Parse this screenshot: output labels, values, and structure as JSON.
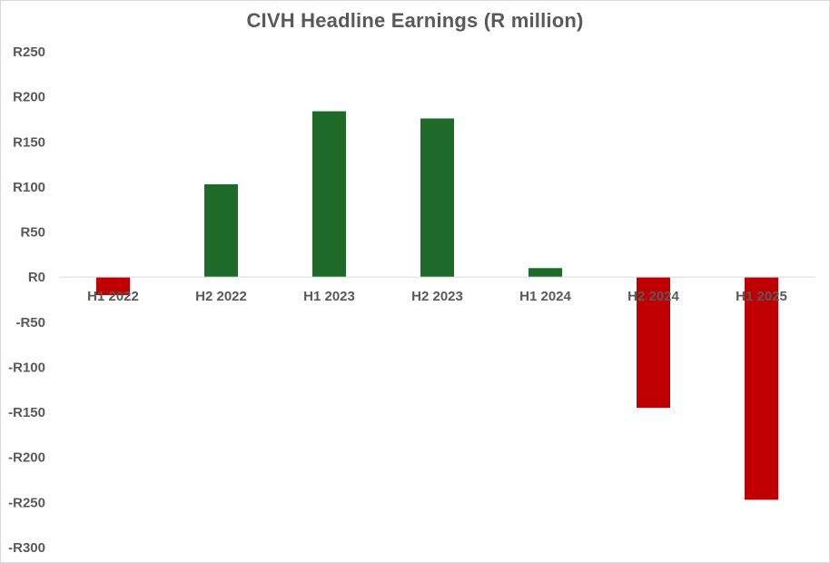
{
  "chart_data": {
    "type": "bar",
    "title": "CIVH Headline Earnings (R million)",
    "categories": [
      "H1 2022",
      "H2 2022",
      "H1 2023",
      "H2 2023",
      "H1 2024",
      "H2 2024",
      "H1 2025"
    ],
    "values": [
      -20,
      103,
      184,
      176,
      10,
      -145,
      -247
    ],
    "ylim": [
      -300,
      250
    ],
    "yticks": [
      250,
      200,
      150,
      100,
      50,
      0,
      -50,
      -100,
      -150,
      -200,
      -250,
      -300
    ],
    "ytick_labels": [
      "R250",
      "R200",
      "R150",
      "R100",
      "R50",
      "R0",
      "-R50",
      "-R100",
      "-R150",
      "-R200",
      "-R250",
      "-R300"
    ],
    "xlabel": "",
    "ylabel": "",
    "grid": false,
    "legend": "none",
    "colors": {
      "positive": "#1e6b29",
      "negative": "#c00000",
      "axis": "#d9d9d9",
      "text": "#595959"
    }
  }
}
